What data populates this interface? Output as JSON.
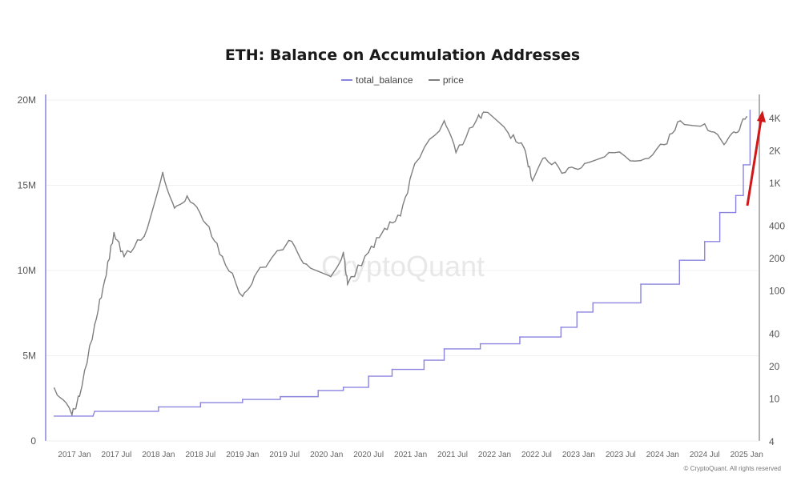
{
  "chart_data": {
    "type": "line",
    "title": "ETH: Balance on Accumulation Addresses",
    "legend": [
      "total_balance",
      "price"
    ],
    "legend_position": "top-center",
    "watermark": "CryptoQuant",
    "copyright": "© CryptoQuant. All rights reserved",
    "x_ticks": [
      "2017 Jan",
      "2017 Jul",
      "2018 Jan",
      "2018 Jul",
      "2019 Jan",
      "2019 Jul",
      "2020 Jan",
      "2020 Jul",
      "2021 Jan",
      "2021 Jul",
      "2022 Jan",
      "2022 Jul",
      "2023 Jan",
      "2023 Jul",
      "2024 Jan",
      "2024 Jul",
      "2025 Jan"
    ],
    "x_range": [
      2016.7,
      2025.15
    ],
    "left_axis": {
      "ticks": [
        "0",
        "5M",
        "10M",
        "15M",
        "20M"
      ],
      "tick_values": [
        0,
        5000000,
        10000000,
        15000000,
        20000000
      ],
      "ylim": [
        0,
        20000000
      ]
    },
    "right_axis": {
      "scale": "log",
      "ticks": [
        "4",
        "10",
        "20",
        "40",
        "100",
        "200",
        "400",
        "1K",
        "2K",
        "4K"
      ],
      "tick_values": [
        4,
        10,
        20,
        40,
        100,
        200,
        400,
        1000,
        2000,
        4000
      ],
      "ylim": [
        4,
        4000
      ]
    },
    "colors": {
      "total_balance": "#8a84e0",
      "price": "#7f7f7f",
      "arrow": "#d01818"
    },
    "series": [
      {
        "name": "total_balance",
        "axis": "left",
        "x": [
          2016.76,
          2017.22,
          2017.24,
          2018.0,
          2018.5,
          2019.0,
          2019.45,
          2019.9,
          2020.2,
          2020.5,
          2020.78,
          2021.16,
          2021.4,
          2021.83,
          2022.3,
          2022.79,
          2022.98,
          2023.17,
          2023.74,
          2024.2,
          2024.5,
          2024.68,
          2024.87,
          2024.96,
          2025.04
        ],
        "values": [
          1460000,
          1460000,
          1740000,
          2000000,
          2250000,
          2440000,
          2600000,
          2960000,
          3150000,
          3800000,
          4200000,
          4740000,
          5400000,
          5700000,
          6100000,
          6670000,
          7560000,
          8100000,
          9200000,
          10600000,
          11700000,
          13400000,
          14400000,
          16200000,
          19400000
        ]
      },
      {
        "name": "price",
        "axis": "right",
        "x": [
          2016.76,
          2016.97,
          2017.06,
          2017.24,
          2017.36,
          2017.47,
          2017.59,
          2017.83,
          2018.05,
          2018.19,
          2018.34,
          2018.57,
          2018.76,
          2019.0,
          2019.14,
          2019.55,
          2019.76,
          2020.05,
          2020.2,
          2020.25,
          2020.5,
          2020.69,
          2020.88,
          2021.05,
          2021.4,
          2021.54,
          2021.78,
          2021.87,
          2022.16,
          2022.35,
          2022.45,
          2022.6,
          2022.84,
          2023.07,
          2023.36,
          2023.74,
          2024.02,
          2024.21,
          2024.5,
          2024.73,
          2024.87,
          2025.0
        ],
        "values": [
          12.4,
          7.0,
          10.4,
          48,
          124,
          344,
          206,
          317,
          1242,
          580,
          750,
          410,
          206,
          88,
          134,
          290,
          175,
          134,
          225,
          114,
          225,
          375,
          490,
          1500,
          3740,
          1900,
          3740,
          4500,
          2900,
          2100,
          1040,
          1700,
          1240,
          1500,
          1900,
          1600,
          2250,
          3740,
          3500,
          2250,
          2900,
          4080
        ]
      }
    ]
  }
}
